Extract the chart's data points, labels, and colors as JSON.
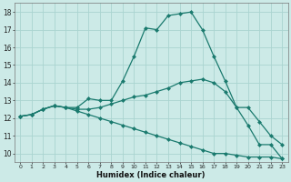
{
  "xlabel": "Humidex (Indice chaleur)",
  "background_color": "#cceae7",
  "grid_color": "#aad4d0",
  "line_color": "#1a7a6e",
  "xlim": [
    -0.5,
    23.5
  ],
  "ylim": [
    9.5,
    18.5
  ],
  "xticks": [
    0,
    1,
    2,
    3,
    4,
    5,
    6,
    7,
    8,
    9,
    10,
    11,
    12,
    13,
    14,
    15,
    16,
    17,
    18,
    19,
    20,
    21,
    22,
    23
  ],
  "yticks": [
    10,
    11,
    12,
    13,
    14,
    15,
    16,
    17,
    18
  ],
  "line1_x": [
    0,
    1,
    2,
    3,
    4,
    5,
    6,
    7,
    8,
    9,
    10,
    11,
    12,
    13,
    14,
    15,
    16,
    17,
    18,
    19,
    20,
    21,
    22,
    23
  ],
  "line1_y": [
    12.1,
    12.2,
    12.5,
    12.7,
    12.6,
    12.6,
    13.1,
    13.0,
    13.0,
    14.1,
    15.5,
    17.1,
    17.0,
    17.8,
    17.9,
    18.0,
    17.0,
    15.5,
    14.1,
    12.6,
    11.6,
    10.5,
    10.5,
    9.7
  ],
  "line2_x": [
    0,
    1,
    2,
    3,
    4,
    5,
    6,
    7,
    8,
    9,
    10,
    11,
    12,
    13,
    14,
    15,
    16,
    17,
    18,
    19,
    20,
    21,
    22,
    23
  ],
  "line2_y": [
    12.1,
    12.2,
    12.5,
    12.7,
    12.6,
    12.5,
    12.5,
    12.6,
    12.8,
    13.0,
    13.2,
    13.3,
    13.5,
    13.7,
    14.0,
    14.1,
    14.2,
    14.0,
    13.5,
    12.6,
    12.6,
    11.8,
    11.0,
    10.5
  ],
  "line3_x": [
    0,
    1,
    2,
    3,
    4,
    5,
    6,
    7,
    8,
    9,
    10,
    11,
    12,
    13,
    14,
    15,
    16,
    17,
    18,
    19,
    20,
    21,
    22,
    23
  ],
  "line3_y": [
    12.1,
    12.2,
    12.5,
    12.7,
    12.6,
    12.4,
    12.2,
    12.0,
    11.8,
    11.6,
    11.4,
    11.2,
    11.0,
    10.8,
    10.6,
    10.4,
    10.2,
    10.0,
    10.0,
    9.9,
    9.8,
    9.8,
    9.8,
    9.7
  ],
  "markersize": 2.5
}
